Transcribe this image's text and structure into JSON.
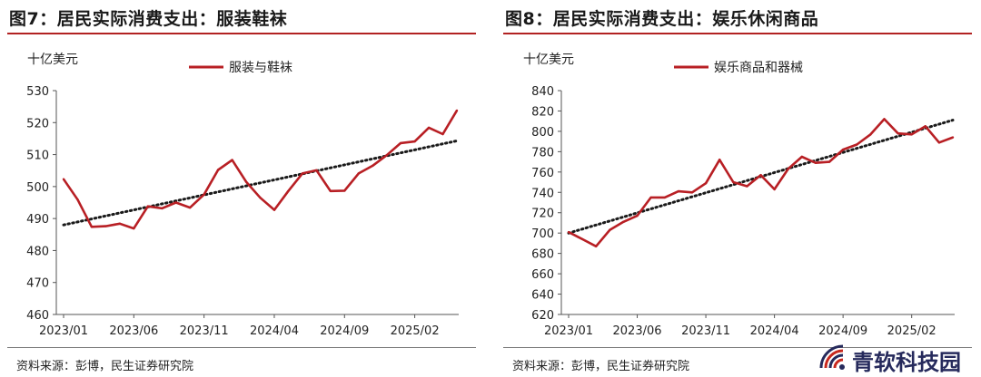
{
  "watermark_text": "青软科技园",
  "chart_data": [
    {
      "type": "line",
      "title": "图7：居民实际消费支出：服装鞋袜",
      "unit": "十亿美元",
      "source": "资料来源：彭博，民生证券研究院",
      "legend_position": "top",
      "ylim": [
        460,
        530
      ],
      "yticks": [
        460,
        470,
        480,
        490,
        500,
        510,
        520,
        530
      ],
      "xticks": [
        {
          "label": "2023/01",
          "index": 0
        },
        {
          "label": "2023/06",
          "index": 5
        },
        {
          "label": "2023/11",
          "index": 10
        },
        {
          "label": "2024/04",
          "index": 15
        },
        {
          "label": "2024/09",
          "index": 20
        },
        {
          "label": "2025/02",
          "index": 25
        }
      ],
      "series": [
        {
          "name": "服装与鞋袜",
          "color": "#b81f24",
          "values": [
            502.3,
            495.9,
            487.4,
            487.6,
            488.4,
            486.9,
            493.8,
            493.2,
            495.0,
            493.4,
            497.5,
            505.2,
            508.3,
            501.5,
            496.5,
            492.7,
            498.6,
            504.1,
            505.1,
            498.6,
            498.7,
            504.1,
            506.5,
            509.8,
            513.6,
            514.1,
            518.4,
            516.4,
            523.8
          ]
        }
      ],
      "trendline": {
        "style": "dotted",
        "color": "#1a1a1a",
        "start": 488.0,
        "end": 514.3
      }
    },
    {
      "type": "line",
      "title": "图8：居民实际消费支出：娱乐休闲商品",
      "unit": "十亿美元",
      "source": "资料来源：彭博，民生证券研究院",
      "legend_position": "top",
      "ylim": [
        620,
        840
      ],
      "yticks": [
        620,
        640,
        660,
        680,
        700,
        720,
        740,
        760,
        780,
        800,
        820,
        840
      ],
      "xticks": [
        {
          "label": "2023/01",
          "index": 0
        },
        {
          "label": "2023/06",
          "index": 5
        },
        {
          "label": "2023/11",
          "index": 10
        },
        {
          "label": "2024/04",
          "index": 15
        },
        {
          "label": "2024/09",
          "index": 20
        },
        {
          "label": "2025/02",
          "index": 25
        }
      ],
      "series": [
        {
          "name": "娱乐商品和器械",
          "color": "#b81f24",
          "values": [
            701,
            694,
            687,
            703,
            711,
            717,
            735,
            735,
            741,
            740,
            749,
            772,
            750,
            746,
            757,
            743,
            763,
            775,
            769,
            770,
            782,
            787,
            797,
            812,
            798,
            797,
            805,
            789,
            794
          ]
        }
      ],
      "trendline": {
        "style": "dotted",
        "color": "#1a1a1a",
        "start": 700.0,
        "end": 811.0
      }
    }
  ]
}
